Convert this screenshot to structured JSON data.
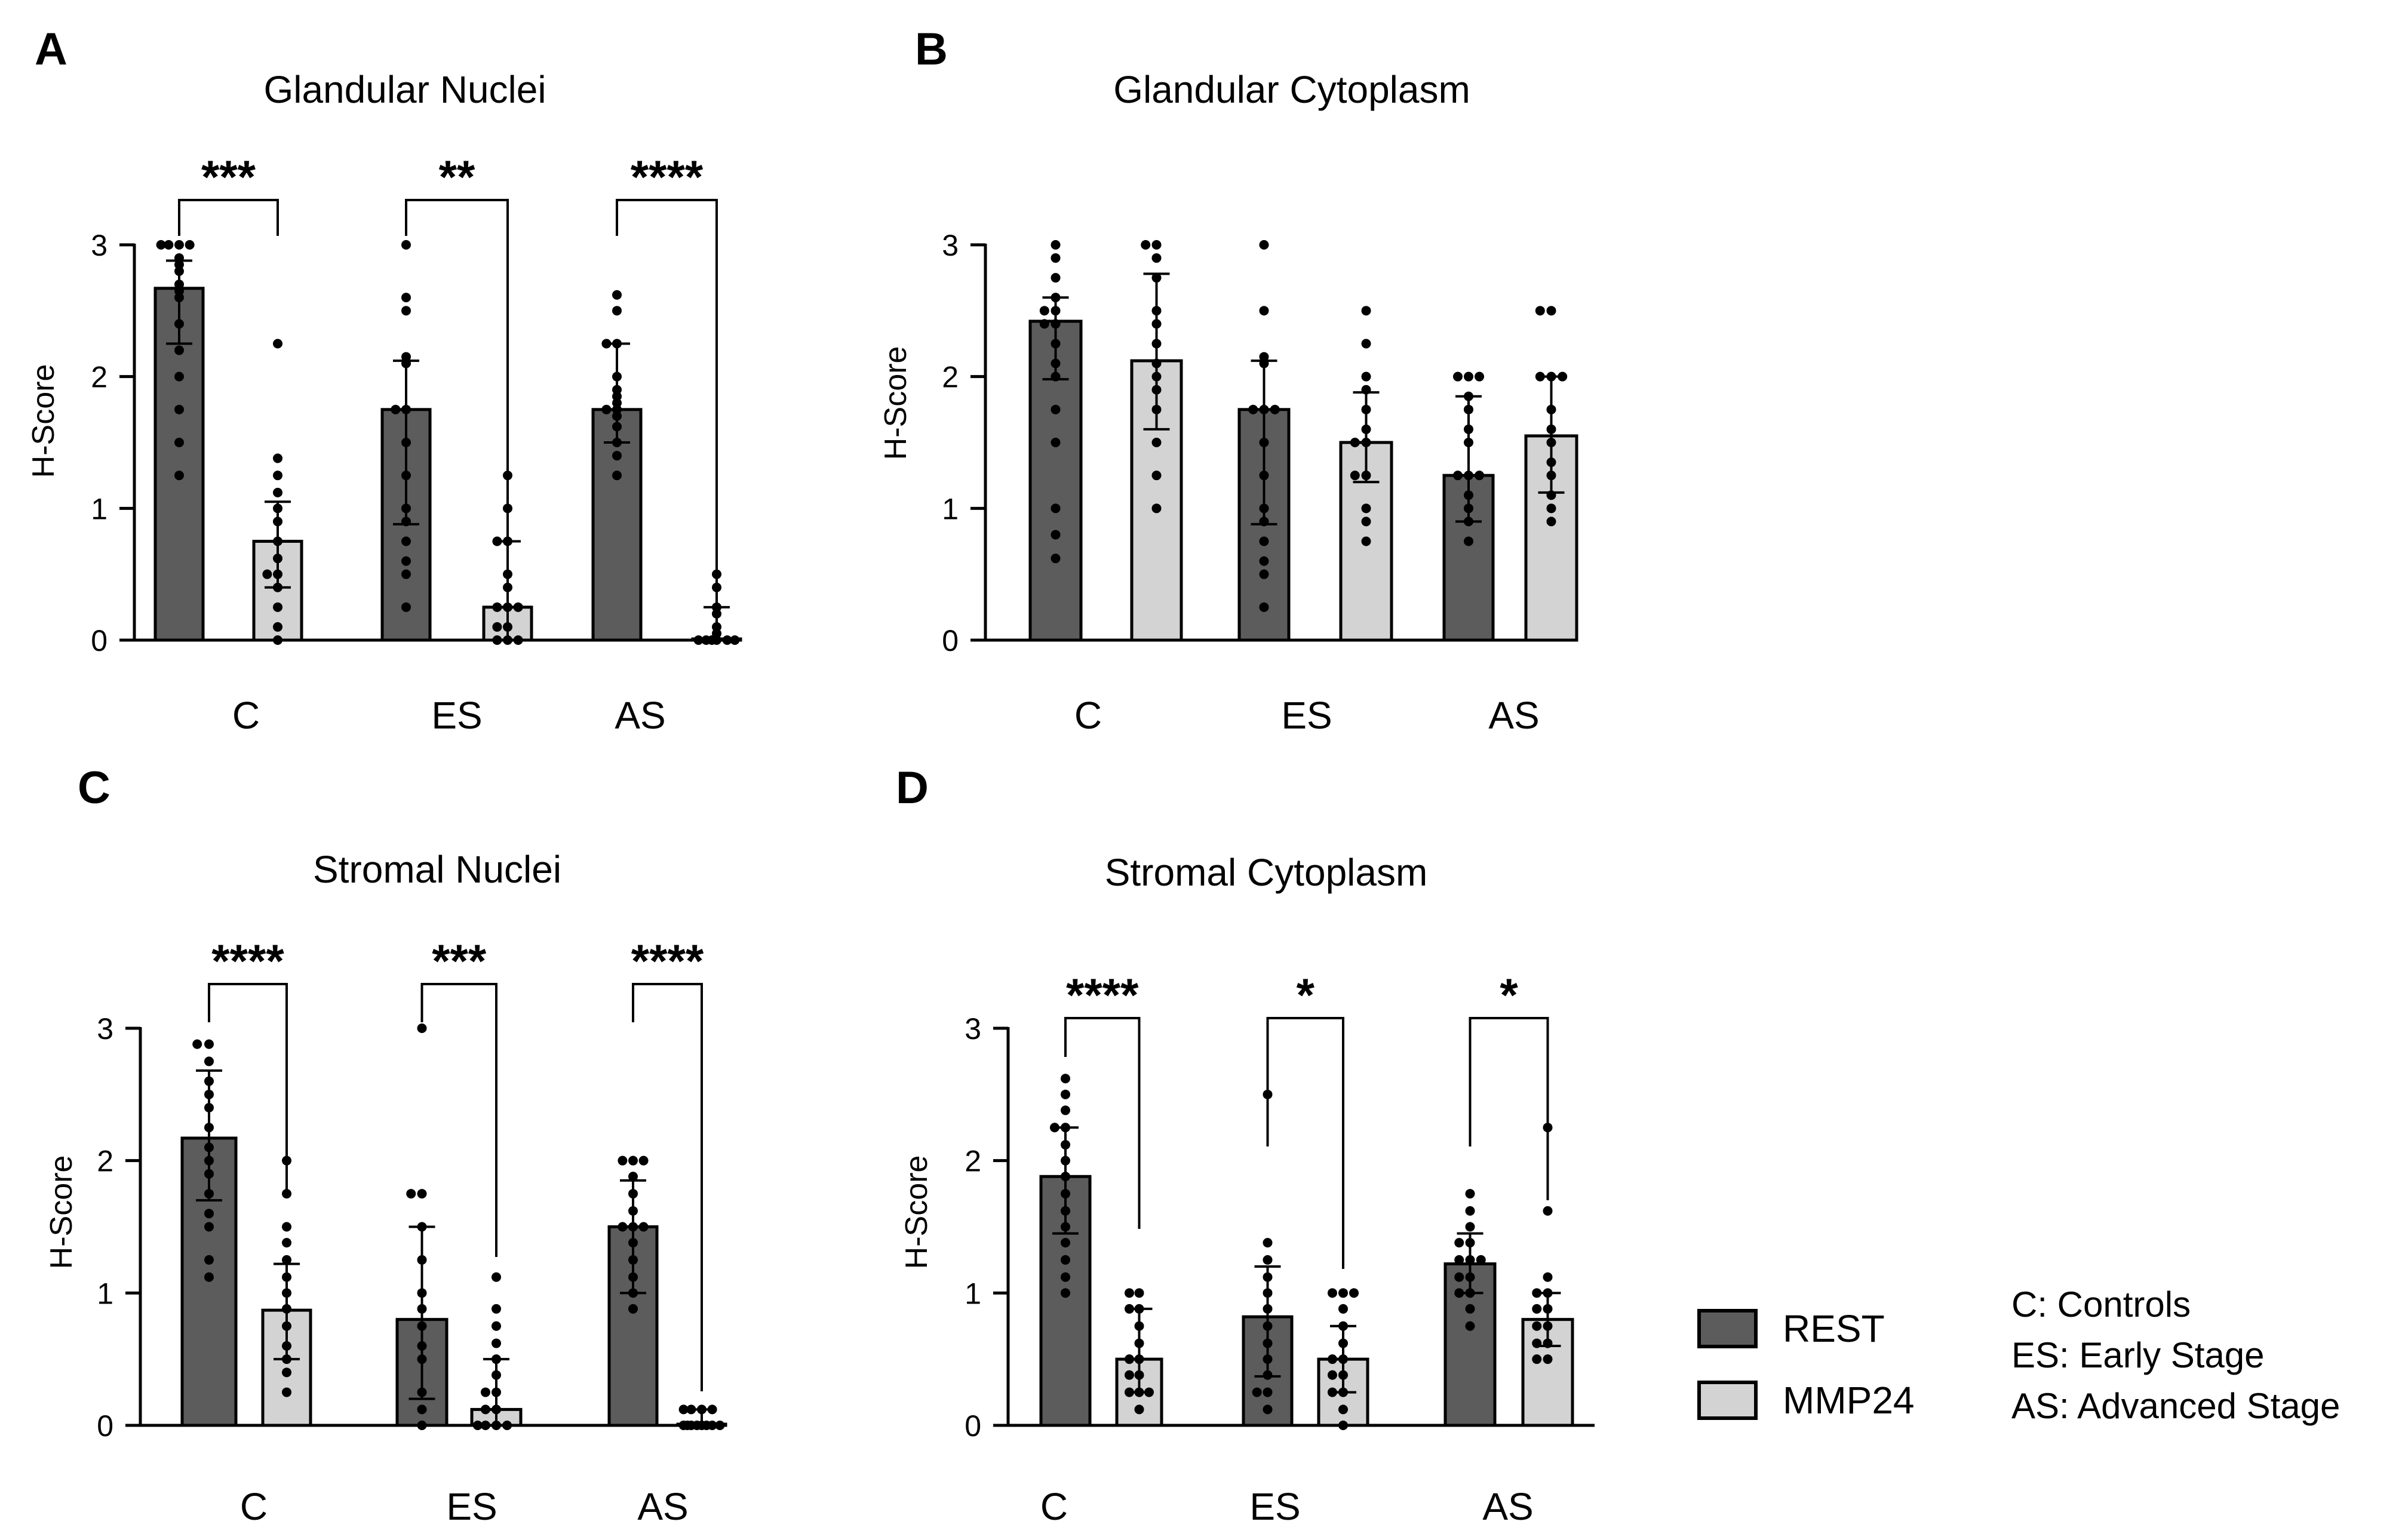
{
  "figure": {
    "legend": {
      "series": [
        {
          "name": "REST",
          "color": "#5c5c5c"
        },
        {
          "name": "MMP24",
          "color": "#d3d3d3"
        }
      ],
      "abbreviations": [
        "C: Controls",
        "ES: Early Stage",
        "AS: Advanced Stage"
      ]
    }
  },
  "chart_data": [
    {
      "panel": "A",
      "type": "bar",
      "title": "Glandular Nuclei",
      "xlabel": "",
      "ylabel": "H-Score",
      "ylim": [
        0,
        3
      ],
      "yticks": [
        "0",
        "1",
        "2",
        "3"
      ],
      "categories": [
        "C",
        "ES",
        "AS"
      ],
      "series": [
        {
          "name": "REST",
          "values": [
            2.67,
            1.75,
            1.75
          ],
          "err_low": [
            2.25,
            0.88,
            1.5
          ],
          "err_high": [
            2.88,
            2.12,
            2.25
          ]
        },
        {
          "name": "MMP24",
          "values": [
            0.75,
            0.25,
            0.0
          ],
          "err_low": [
            0.4,
            0.0,
            0.0
          ],
          "err_high": [
            1.05,
            0.75,
            0.25
          ]
        }
      ],
      "points": [
        {
          "rest": [
            3,
            3,
            3,
            3,
            2.9,
            2.85,
            2.8,
            2.7,
            2.65,
            2.6,
            2.4,
            2.2,
            2.0,
            1.75,
            1.5,
            1.25
          ],
          "mmp": [
            2.25,
            1.38,
            1.25,
            1.12,
            1.0,
            0.9,
            0.75,
            0.62,
            0.5,
            0.5,
            0.4,
            0.25,
            0.1,
            0.0
          ]
        },
        {
          "rest": [
            3.0,
            2.6,
            2.5,
            2.15,
            2.1,
            1.75,
            1.75,
            1.5,
            1.25,
            1.0,
            0.9,
            0.75,
            0.6,
            0.5,
            0.25
          ],
          "mmp": [
            1.25,
            1.0,
            0.75,
            0.75,
            0.5,
            0.4,
            0.25,
            0.25,
            0.25,
            0.1,
            0.1,
            0.0,
            0.0,
            0.0
          ]
        },
        {
          "rest": [
            2.62,
            2.5,
            2.25,
            2.25,
            2.0,
            1.9,
            1.85,
            1.8,
            1.75,
            1.75,
            1.7,
            1.62,
            1.5,
            1.4,
            1.25
          ],
          "mmp": [
            0.5,
            0.4,
            0.25,
            0.2,
            0.1,
            0.05,
            0.0,
            0.0,
            0.0,
            0.0,
            0.0,
            0.0
          ]
        }
      ],
      "significance": [
        "***",
        "**",
        "****"
      ]
    },
    {
      "panel": "B",
      "type": "bar",
      "title": "Glandular Cytoplasm",
      "xlabel": "",
      "ylabel": "H-Score",
      "ylim": [
        0,
        3
      ],
      "yticks": [
        "0",
        "1",
        "2",
        "3"
      ],
      "categories": [
        "C",
        "ES",
        "AS"
      ],
      "series": [
        {
          "name": "REST",
          "values": [
            2.42,
            1.75,
            1.25
          ],
          "err_low": [
            1.98,
            0.88,
            0.9
          ],
          "err_high": [
            2.6,
            2.12,
            1.85
          ]
        },
        {
          "name": "MMP24",
          "values": [
            2.12,
            1.5,
            1.55
          ],
          "err_low": [
            1.6,
            1.2,
            1.12
          ],
          "err_high": [
            2.78,
            1.88,
            2.0
          ]
        }
      ],
      "points": [
        {
          "rest": [
            3.0,
            2.9,
            2.75,
            2.6,
            2.5,
            2.5,
            2.4,
            2.4,
            2.25,
            2.1,
            2.0,
            1.75,
            1.5,
            1.0,
            0.8,
            0.62
          ],
          "mmp": [
            3.0,
            3.0,
            2.9,
            2.75,
            2.5,
            2.4,
            2.25,
            2.1,
            2.0,
            1.9,
            1.75,
            1.5,
            1.25,
            1.0
          ]
        },
        {
          "rest": [
            3.0,
            2.5,
            2.15,
            2.1,
            1.75,
            1.75,
            1.75,
            1.5,
            1.25,
            1.0,
            0.9,
            0.75,
            0.6,
            0.5,
            0.25
          ],
          "mmp": [
            2.5,
            2.25,
            2.0,
            1.9,
            1.75,
            1.6,
            1.5,
            1.5,
            1.25,
            1.25,
            1.0,
            0.9,
            0.75
          ]
        },
        {
          "rest": [
            2.0,
            2.0,
            2.0,
            1.85,
            1.75,
            1.6,
            1.5,
            1.25,
            1.25,
            1.25,
            1.1,
            1.0,
            0.9,
            0.75
          ],
          "mmp": [
            2.5,
            2.5,
            2.0,
            2.0,
            2.0,
            1.75,
            1.6,
            1.5,
            1.35,
            1.25,
            1.1,
            1.0,
            0.9
          ]
        }
      ],
      "significance": []
    },
    {
      "panel": "C",
      "type": "bar",
      "title": "Stromal Nuclei",
      "xlabel": "",
      "ylabel": "H-Score",
      "ylim": [
        0,
        3
      ],
      "yticks": [
        "0",
        "1",
        "2",
        "3"
      ],
      "categories": [
        "C",
        "ES",
        "AS"
      ],
      "series": [
        {
          "name": "REST",
          "values": [
            2.17,
            0.8,
            1.5
          ],
          "err_low": [
            1.7,
            0.2,
            1.0
          ],
          "err_high": [
            2.68,
            1.5,
            1.85
          ]
        },
        {
          "name": "MMP24",
          "values": [
            0.87,
            0.12,
            0.0
          ],
          "err_low": [
            0.5,
            0.0,
            0.0
          ],
          "err_high": [
            1.22,
            0.5,
            0.12
          ]
        }
      ],
      "points": [
        {
          "rest": [
            2.88,
            2.88,
            2.75,
            2.6,
            2.5,
            2.4,
            2.25,
            2.1,
            2.0,
            1.9,
            1.75,
            1.6,
            1.5,
            1.25,
            1.12
          ],
          "mmp": [
            2.0,
            1.75,
            1.5,
            1.38,
            1.25,
            1.12,
            1.0,
            0.88,
            0.75,
            0.6,
            0.5,
            0.4,
            0.25
          ]
        },
        {
          "rest": [
            3.0,
            1.75,
            1.75,
            1.5,
            1.25,
            1.0,
            0.88,
            0.75,
            0.6,
            0.5,
            0.25,
            0.12,
            0.0
          ],
          "mmp": [
            1.12,
            0.88,
            0.75,
            0.62,
            0.5,
            0.38,
            0.25,
            0.25,
            0.12,
            0.12,
            0.0,
            0.0,
            0.0,
            0.0
          ]
        },
        {
          "rest": [
            2.0,
            2.0,
            2.0,
            1.88,
            1.75,
            1.62,
            1.5,
            1.5,
            1.5,
            1.38,
            1.25,
            1.12,
            1.0,
            0.88
          ],
          "mmp": [
            0.12,
            0.12,
            0.12,
            0.12,
            0.0,
            0.0,
            0.0,
            0.0,
            0.0,
            0.0,
            0.0,
            0.0
          ]
        }
      ],
      "significance": [
        "****",
        "***",
        "****"
      ]
    },
    {
      "panel": "D",
      "type": "bar",
      "title": "Stromal Cytoplasm",
      "xlabel": "",
      "ylabel": "H-Score",
      "ylim": [
        0,
        3
      ],
      "yticks": [
        "0",
        "1",
        "2",
        "3"
      ],
      "categories": [
        "C",
        "ES",
        "AS"
      ],
      "series": [
        {
          "name": "REST",
          "values": [
            1.88,
            0.82,
            1.22
          ],
          "err_low": [
            1.45,
            0.37,
            1.0
          ],
          "err_high": [
            2.25,
            1.2,
            1.45
          ]
        },
        {
          "name": "MMP24",
          "values": [
            0.5,
            0.5,
            0.8
          ],
          "err_low": [
            0.25,
            0.25,
            0.6
          ],
          "err_high": [
            0.88,
            0.75,
            1.0
          ]
        }
      ],
      "points": [
        {
          "rest": [
            2.62,
            2.5,
            2.38,
            2.25,
            2.25,
            2.12,
            2.0,
            1.88,
            1.75,
            1.62,
            1.5,
            1.38,
            1.25,
            1.12,
            1.0
          ],
          "mmp": [
            1.0,
            1.0,
            0.88,
            0.88,
            0.75,
            0.62,
            0.5,
            0.5,
            0.38,
            0.38,
            0.25,
            0.25,
            0.25,
            0.12
          ]
        },
        {
          "rest": [
            2.5,
            1.38,
            1.25,
            1.12,
            1.0,
            0.88,
            0.75,
            0.62,
            0.5,
            0.38,
            0.25,
            0.25,
            0.12
          ],
          "mmp": [
            1.0,
            1.0,
            1.0,
            0.88,
            0.75,
            0.62,
            0.5,
            0.5,
            0.38,
            0.38,
            0.25,
            0.25,
            0.12,
            0.0
          ]
        },
        {
          "rest": [
            1.75,
            1.62,
            1.5,
            1.38,
            1.38,
            1.25,
            1.25,
            1.25,
            1.12,
            1.12,
            1.0,
            1.0,
            0.88,
            0.75
          ],
          "mmp": [
            2.25,
            1.62,
            1.12,
            1.0,
            1.0,
            0.88,
            0.88,
            0.75,
            0.75,
            0.62,
            0.62,
            0.5,
            0.5
          ]
        }
      ],
      "significance": [
        "****",
        "*",
        "*"
      ]
    }
  ]
}
